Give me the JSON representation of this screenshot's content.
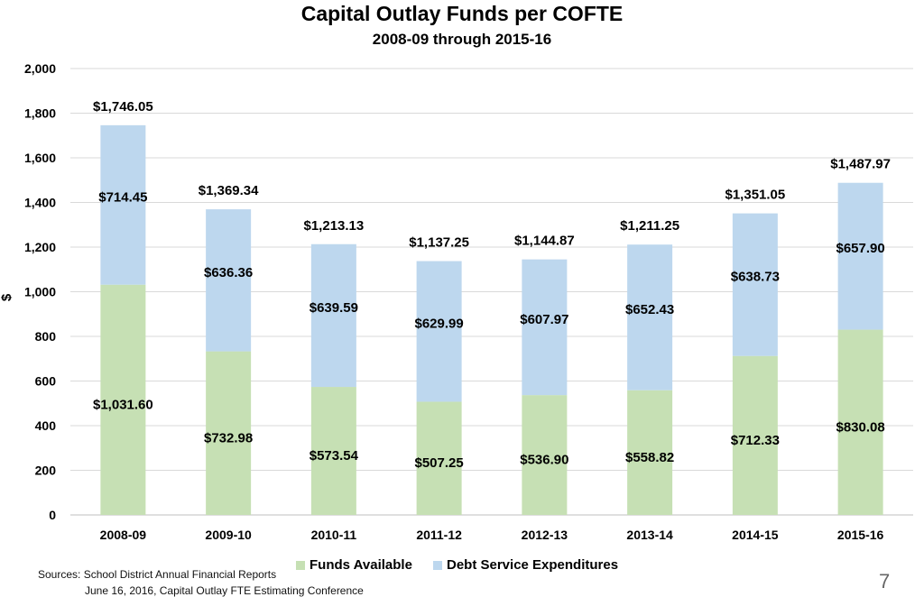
{
  "chart_data": {
    "type": "bar",
    "stacked": true,
    "title": "Capital Outlay Funds per COFTE",
    "subtitle": "2008-09 through 2015-16",
    "xlabel": "",
    "ylabel": "$",
    "ylim": [
      0,
      2000
    ],
    "yticks": [
      "0",
      "200",
      "400",
      "600",
      "800",
      "1,000",
      "1,200",
      "1,400",
      "1,600",
      "1,800",
      "2,000"
    ],
    "grid": true,
    "legend_position": "bottom",
    "categories": [
      "2008-09",
      "2009-10",
      "2010-11",
      "2011-12",
      "2012-13",
      "2013-14",
      "2014-15",
      "2015-16"
    ],
    "series": [
      {
        "name": "Funds Available",
        "color": "#c6e0b4",
        "values": [
          1031.6,
          732.98,
          573.54,
          507.25,
          536.9,
          558.82,
          712.33,
          830.08
        ],
        "labels": [
          "$1,031.60",
          "$732.98",
          "$573.54",
          "$507.25",
          "$536.90",
          "$558.82",
          "$712.33",
          "$830.08"
        ]
      },
      {
        "name": "Debt Service Expenditures",
        "color": "#bdd7ee",
        "values": [
          714.45,
          636.36,
          639.59,
          629.99,
          607.97,
          652.43,
          638.73,
          657.9
        ],
        "labels": [
          "$714.45",
          "$636.36",
          "$639.59",
          "$629.99",
          "$607.97",
          "$652.43",
          "$638.73",
          "$657.90"
        ]
      }
    ],
    "totals": [
      "$1,746.05",
      "$1,369.34",
      "$1,213.13",
      "$1,137.25",
      "$1,144.87",
      "$1,211.25",
      "$1,351.05",
      "$1,487.97"
    ]
  },
  "footer": {
    "sources": "Sources: School District Annual Financial Reports",
    "conference": "June 16, 2016, Capital Outlay FTE Estimating Conference",
    "page_number": "7"
  }
}
